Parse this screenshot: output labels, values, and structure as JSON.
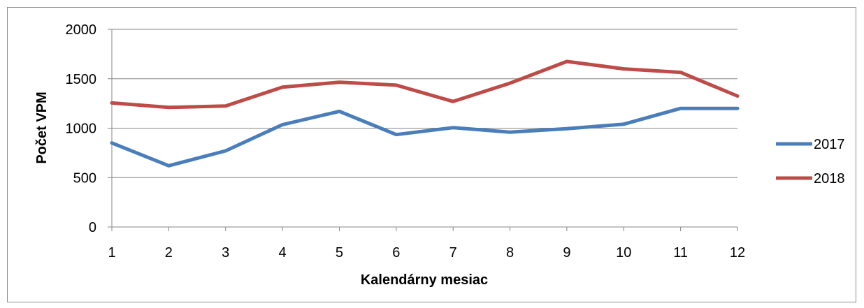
{
  "chart_data": {
    "type": "line",
    "title": "",
    "xlabel": "Kalendárny mesiac",
    "ylabel": "Počet VPM",
    "x": [
      1,
      2,
      3,
      4,
      5,
      6,
      7,
      8,
      9,
      10,
      11,
      12
    ],
    "x_tick_labels": [
      "1",
      "2",
      "3",
      "4",
      "5",
      "6",
      "7",
      "8",
      "9",
      "10",
      "11",
      "12"
    ],
    "y_tick_labels": [
      "0",
      "500",
      "1000",
      "1500",
      "2000"
    ],
    "y_ticks": [
      0,
      500,
      1000,
      1500,
      2000
    ],
    "ylim": [
      0,
      2000
    ],
    "xlim": [
      1,
      12
    ],
    "grid": "horizontal",
    "legend_position": "right",
    "series": [
      {
        "name": "2017",
        "color": "#4a7ebb",
        "values": [
          850,
          620,
          770,
          1035,
          1170,
          935,
          1005,
          960,
          995,
          1040,
          1200,
          1200
        ]
      },
      {
        "name": "2018",
        "color": "#be4b48",
        "values": [
          1255,
          1210,
          1225,
          1415,
          1465,
          1435,
          1270,
          1455,
          1675,
          1600,
          1565,
          1325
        ]
      }
    ]
  }
}
